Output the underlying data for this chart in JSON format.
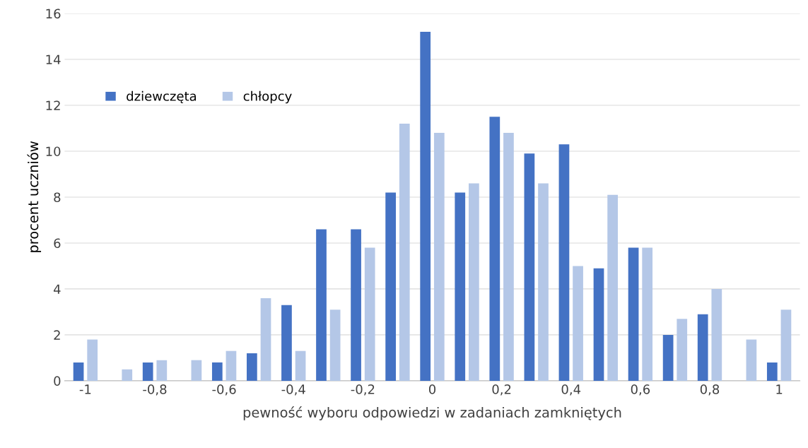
{
  "chart_data": {
    "type": "bar",
    "xlabel": "pewność wyboru odpowiedzi w zadaniach zamkniętych",
    "ylabel": "procent uczniów",
    "categories": [
      "-1",
      null,
      "-0,8",
      null,
      "-0,6",
      null,
      "-0,4",
      null,
      "-0,2",
      null,
      "0",
      null,
      "0,2",
      null,
      "0,4",
      null,
      "0,6",
      null,
      "0,8",
      null,
      "1"
    ],
    "series": [
      {
        "name": "dziewczęta",
        "color": "#4472c4",
        "values": [
          0.8,
          0,
          0.8,
          0,
          0.8,
          1.2,
          3.3,
          6.6,
          6.6,
          8.2,
          15.2,
          8.2,
          11.5,
          9.9,
          10.3,
          4.9,
          5.8,
          2.0,
          2.9,
          0,
          0.8
        ]
      },
      {
        "name": "chłopcy",
        "color": "#b4c7e7",
        "values": [
          1.8,
          0.5,
          0.9,
          0.9,
          1.3,
          3.6,
          1.3,
          3.1,
          5.8,
          11.2,
          10.8,
          8.6,
          10.8,
          8.6,
          5.0,
          8.1,
          5.8,
          2.7,
          4.0,
          1.8,
          3.1
        ]
      }
    ],
    "ylim": [
      0,
      16
    ],
    "yticks": [
      0,
      2,
      4,
      6,
      8,
      10,
      12,
      14,
      16
    ],
    "grid": "y",
    "legend": "top left"
  }
}
